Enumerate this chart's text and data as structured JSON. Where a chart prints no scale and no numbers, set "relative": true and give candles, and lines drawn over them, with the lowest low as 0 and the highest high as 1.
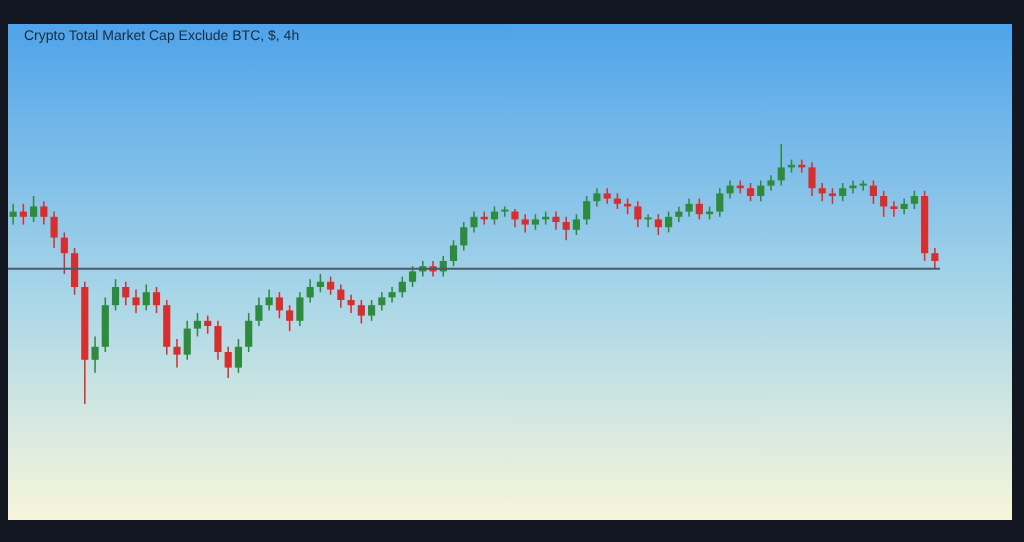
{
  "chart_data": {
    "type": "candlestick",
    "title": "Crypto Total Market Cap Exclude BTC, $, 4h",
    "relative": true,
    "grid": false,
    "legend": false,
    "categories": [
      null,
      null,
      null,
      null,
      null,
      null,
      null,
      null,
      null,
      null,
      null,
      null,
      null,
      null,
      null,
      null,
      null,
      null,
      null,
      null,
      null,
      null,
      null,
      null,
      null,
      null,
      null,
      null,
      null,
      null,
      null,
      null,
      null,
      null,
      null,
      null,
      null,
      null,
      null,
      null,
      null,
      null,
      null,
      null,
      null,
      null,
      null,
      null,
      null,
      null,
      null,
      null,
      null,
      null,
      null,
      null,
      null,
      null,
      null,
      null,
      null,
      null,
      null,
      null,
      null,
      null,
      null,
      null,
      null,
      null,
      null,
      null,
      null,
      null,
      null,
      null,
      null,
      null,
      null,
      null,
      null,
      null,
      null,
      null,
      null,
      null,
      null,
      null,
      null,
      null,
      null
    ],
    "ohlc": [
      [
        0.72,
        0.77,
        0.69,
        0.74
      ],
      [
        0.74,
        0.77,
        0.69,
        0.72
      ],
      [
        0.72,
        0.8,
        0.7,
        0.76
      ],
      [
        0.76,
        0.78,
        0.69,
        0.72
      ],
      [
        0.72,
        0.74,
        0.6,
        0.64
      ],
      [
        0.64,
        0.66,
        0.5,
        0.58
      ],
      [
        0.58,
        0.6,
        0.42,
        0.45
      ],
      [
        0.45,
        0.47,
        0,
        0.17
      ],
      [
        0.17,
        0.26,
        0.12,
        0.22
      ],
      [
        0.22,
        0.41,
        0.2,
        0.38
      ],
      [
        0.38,
        0.48,
        0.36,
        0.45
      ],
      [
        0.45,
        0.47,
        0.38,
        0.41
      ],
      [
        0.41,
        0.44,
        0.35,
        0.38
      ],
      [
        0.38,
        0.46,
        0.36,
        0.43
      ],
      [
        0.43,
        0.45,
        0.35,
        0.38
      ],
      [
        0.38,
        0.4,
        0.19,
        0.22
      ],
      [
        0.22,
        0.25,
        0.14,
        0.19
      ],
      [
        0.19,
        0.32,
        0.17,
        0.29
      ],
      [
        0.29,
        0.35,
        0.26,
        0.32
      ],
      [
        0.32,
        0.34,
        0.27,
        0.3
      ],
      [
        0.3,
        0.32,
        0.17,
        0.2
      ],
      [
        0.2,
        0.22,
        0.1,
        0.14
      ],
      [
        0.14,
        0.25,
        0.12,
        0.22
      ],
      [
        0.22,
        0.35,
        0.2,
        0.32
      ],
      [
        0.32,
        0.41,
        0.3,
        0.38
      ],
      [
        0.38,
        0.44,
        0.36,
        0.41
      ],
      [
        0.41,
        0.43,
        0.33,
        0.36
      ],
      [
        0.36,
        0.38,
        0.28,
        0.32
      ],
      [
        0.32,
        0.43,
        0.3,
        0.41
      ],
      [
        0.41,
        0.48,
        0.39,
        0.45
      ],
      [
        0.45,
        0.5,
        0.43,
        0.47
      ],
      [
        0.47,
        0.49,
        0.42,
        0.44
      ],
      [
        0.44,
        0.46,
        0.37,
        0.4
      ],
      [
        0.4,
        0.42,
        0.35,
        0.38
      ],
      [
        0.38,
        0.4,
        0.31,
        0.34
      ],
      [
        0.34,
        0.4,
        0.32,
        0.38
      ],
      [
        0.38,
        0.43,
        0.36,
        0.41
      ],
      [
        0.41,
        0.45,
        0.39,
        0.43
      ],
      [
        0.43,
        0.49,
        0.41,
        0.47
      ],
      [
        0.47,
        0.53,
        0.45,
        0.51
      ],
      [
        0.51,
        0.55,
        0.49,
        0.53
      ],
      [
        0.53,
        0.55,
        0.49,
        0.51
      ],
      [
        0.51,
        0.57,
        0.49,
        0.55
      ],
      [
        0.55,
        0.63,
        0.53,
        0.61
      ],
      [
        0.61,
        0.7,
        0.59,
        0.68
      ],
      [
        0.68,
        0.74,
        0.66,
        0.72
      ],
      [
        0.72,
        0.74,
        0.69,
        0.71
      ],
      [
        0.71,
        0.76,
        0.69,
        0.74
      ],
      [
        0.74,
        0.76,
        0.72,
        0.74
      ],
      [
        0.74,
        0.75,
        0.68,
        0.71
      ],
      [
        0.71,
        0.73,
        0.66,
        0.69
      ],
      [
        0.69,
        0.73,
        0.67,
        0.71
      ],
      [
        0.71,
        0.74,
        0.69,
        0.72
      ],
      [
        0.72,
        0.74,
        0.67,
        0.7
      ],
      [
        0.7,
        0.72,
        0.63,
        0.67
      ],
      [
        0.67,
        0.73,
        0.65,
        0.71
      ],
      [
        0.71,
        0.8,
        0.69,
        0.78
      ],
      [
        0.78,
        0.83,
        0.76,
        0.81
      ],
      [
        0.81,
        0.83,
        0.77,
        0.79
      ],
      [
        0.79,
        0.81,
        0.75,
        0.77
      ],
      [
        0.77,
        0.79,
        0.73,
        0.76
      ],
      [
        0.76,
        0.78,
        0.68,
        0.71
      ],
      [
        0.71,
        0.73,
        0.68,
        0.71
      ],
      [
        0.71,
        0.73,
        0.65,
        0.68
      ],
      [
        0.68,
        0.74,
        0.66,
        0.72
      ],
      [
        0.72,
        0.76,
        0.7,
        0.74
      ],
      [
        0.74,
        0.79,
        0.72,
        0.77
      ],
      [
        0.77,
        0.79,
        0.71,
        0.73
      ],
      [
        0.73,
        0.76,
        0.71,
        0.74
      ],
      [
        0.74,
        0.83,
        0.72,
        0.81
      ],
      [
        0.81,
        0.86,
        0.79,
        0.84
      ],
      [
        0.84,
        0.86,
        0.81,
        0.83
      ],
      [
        0.83,
        0.85,
        0.78,
        0.8
      ],
      [
        0.8,
        0.86,
        0.78,
        0.84
      ],
      [
        0.84,
        0.88,
        0.82,
        0.86
      ],
      [
        0.86,
        1,
        0.84,
        0.91
      ],
      [
        0.91,
        0.94,
        0.89,
        0.92
      ],
      [
        0.92,
        0.94,
        0.89,
        0.91
      ],
      [
        0.91,
        0.93,
        0.8,
        0.83
      ],
      [
        0.83,
        0.85,
        0.78,
        0.81
      ],
      [
        0.81,
        0.83,
        0.77,
        0.8
      ],
      [
        0.8,
        0.85,
        0.78,
        0.83
      ],
      [
        0.83,
        0.86,
        0.81,
        0.84
      ],
      [
        0.84,
        0.86,
        0.82,
        0.84
      ],
      [
        0.84,
        0.86,
        0.77,
        0.8
      ],
      [
        0.8,
        0.82,
        0.72,
        0.76
      ],
      [
        0.76,
        0.78,
        0.72,
        0.75
      ],
      [
        0.75,
        0.79,
        0.73,
        0.77
      ],
      [
        0.77,
        0.82,
        0.75,
        0.8
      ],
      [
        0.8,
        0.82,
        0.55,
        0.58
      ],
      [
        0.58,
        0.6,
        0.52,
        0.55
      ]
    ],
    "ref_lines": [
      {
        "axis": "y",
        "value": 0.52,
        "color": "#4a5a6a"
      }
    ]
  }
}
